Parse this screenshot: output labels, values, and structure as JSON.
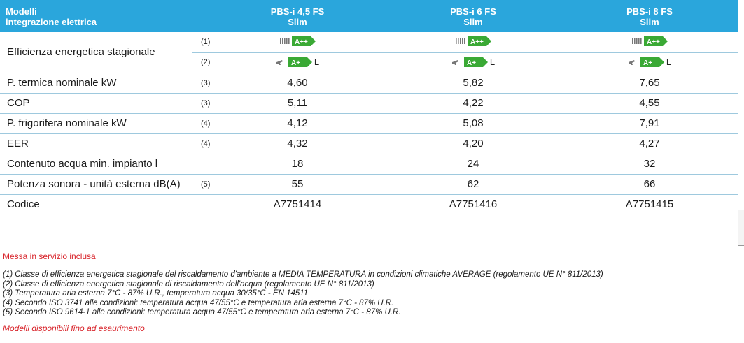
{
  "header": {
    "title_line1": "Modelli",
    "title_line2": "integrazione elettrica",
    "models": [
      {
        "line1": "PBS-i 4,5 FS",
        "line2": "Slim"
      },
      {
        "line1": "PBS-i 6 FS",
        "line2": "Slim"
      },
      {
        "line1": "PBS-i 8 FS",
        "line2": "Slim"
      }
    ]
  },
  "efficiency": {
    "label": "Efficienza energetica stagionale",
    "note1": "(1)",
    "note2": "(2)",
    "heating_class": "A++",
    "water_class": "A+",
    "water_profile": "L"
  },
  "rows": [
    {
      "label": "P. termica nominale kW",
      "note": "(3)",
      "values": [
        "4,60",
        "5,82",
        "7,65"
      ]
    },
    {
      "label": "COP",
      "note": "(3)",
      "values": [
        "5,11",
        "4,22",
        "4,55"
      ]
    },
    {
      "label": "P. frigorifera nominale kW",
      "note": "(4)",
      "values": [
        "4,12",
        "5,08",
        "7,91"
      ]
    },
    {
      "label": "EER",
      "note": "(4)",
      "values": [
        "4,32",
        "4,20",
        "4,27"
      ]
    },
    {
      "label": "Contenuto acqua min. impianto l",
      "note": "",
      "values": [
        "18",
        "24",
        "32"
      ]
    },
    {
      "label": "Potenza sonora - unità esterna dB(A)",
      "note": "(5)",
      "values": [
        "55",
        "62",
        "66"
      ]
    },
    {
      "label": "Codice",
      "note": "",
      "values": [
        "A7751414",
        "A7751416",
        "A7751415"
      ]
    }
  ],
  "footer": {
    "commissioning": "Messa in servizio inclusa",
    "notes": [
      "(1) Classe di efficienza energetica stagionale del riscaldamento d'ambiente a MEDIA TEMPERATURA in condizioni climatiche AVERAGE (regolamento UE N° 811/2013)",
      "(2) Classe di efficienza energetica stagionale di riscaldamento dell'acqua (regolamento UE N° 811/2013)",
      "(3) Temperatura aria esterna 7°C - 87% U.R., temperatura acqua 30/35°C - EN 14511",
      "(4) Secondo ISO 3741 alle condizioni: temperatura acqua 47/55°C e temperatura aria esterna 7°C - 87% U.R.",
      "(5) Secondo ISO 9614-1 alle condizioni: temperatura acqua 47/55°C e temperatura aria esterna 7°C - 87% U.R."
    ],
    "availability": "Modelli disponibili fino ad esaurimento"
  },
  "colors": {
    "header_bg": "#2aa6dc",
    "energy_green": "#3aa935",
    "notice_red": "#d8232a"
  },
  "icons": [
    "radiator-icon",
    "tap-icon"
  ]
}
